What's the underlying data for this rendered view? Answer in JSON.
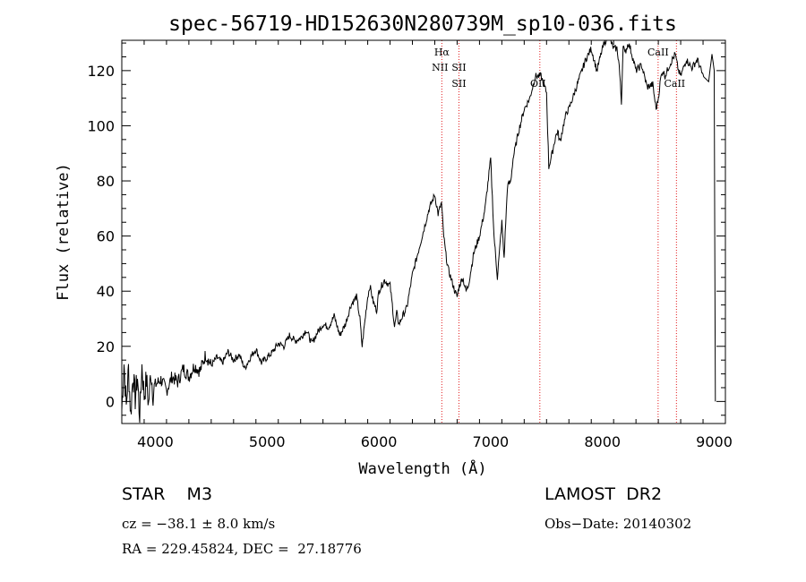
{
  "chart_data": {
    "type": "line",
    "title": "spec-56719-HD152630N280739M_sp10-036.fits",
    "xlabel": "Wavelength (Å)",
    "ylabel": "Flux (relative)",
    "xlim": [
      3700,
      9100
    ],
    "ylim": [
      -8,
      131
    ],
    "xticks": [
      4000,
      5000,
      6000,
      7000,
      8000,
      9000
    ],
    "yticks": [
      0,
      20,
      40,
      60,
      80,
      100,
      120
    ],
    "grid": false,
    "series": [
      {
        "name": "flux",
        "x": [
          3700,
          3720,
          3740,
          3760,
          3780,
          3800,
          3820,
          3840,
          3860,
          3880,
          3900,
          3920,
          3940,
          3960,
          3980,
          4000,
          4050,
          4100,
          4150,
          4200,
          4250,
          4300,
          4350,
          4400,
          4450,
          4500,
          4550,
          4600,
          4650,
          4700,
          4750,
          4800,
          4850,
          4900,
          4950,
          5000,
          5050,
          5100,
          5150,
          5200,
          5250,
          5300,
          5350,
          5400,
          5450,
          5500,
          5550,
          5600,
          5650,
          5700,
          5750,
          5800,
          5830,
          5850,
          5880,
          5900,
          5920,
          5950,
          5980,
          6000,
          6050,
          6100,
          6120,
          6140,
          6160,
          6180,
          6200,
          6250,
          6300,
          6350,
          6400,
          6450,
          6500,
          6530,
          6560,
          6580,
          6600,
          6620,
          6650,
          6680,
          6700,
          6720,
          6750,
          6780,
          6800,
          6850,
          6900,
          6950,
          7000,
          7030,
          7060,
          7080,
          7100,
          7120,
          7150,
          7180,
          7200,
          7250,
          7300,
          7350,
          7400,
          7450,
          7500,
          7520,
          7550,
          7580,
          7600,
          7620,
          7650,
          7680,
          7700,
          7750,
          7800,
          7850,
          7900,
          7950,
          8000,
          8050,
          8100,
          8130,
          8150,
          8170,
          8185,
          8200,
          8230,
          8250,
          8300,
          8350,
          8400,
          8450,
          8480,
          8500,
          8520,
          8540,
          8560,
          8600,
          8650,
          8680,
          8700,
          8750,
          8800,
          8850,
          8900,
          8950,
          8980,
          9000,
          9010
        ],
        "values": [
          -3,
          14,
          -2,
          12,
          -5,
          10,
          1,
          9,
          -6,
          13,
          2,
          8,
          -1,
          11,
          3,
          6,
          8,
          4,
          9,
          7,
          12,
          9,
          13,
          11,
          17,
          13,
          16,
          14,
          18,
          15,
          17,
          12,
          16,
          19,
          14,
          16,
          18,
          21,
          20,
          24,
          22,
          23,
          26,
          21,
          25,
          28,
          27,
          31,
          24,
          28,
          35,
          38,
          30,
          20,
          31,
          38,
          42,
          36,
          33,
          40,
          44,
          42,
          35,
          27,
          32,
          28,
          30,
          34,
          46,
          54,
          62,
          70,
          75,
          68,
          72,
          60,
          53,
          48,
          44,
          40,
          38,
          42,
          45,
          40,
          42,
          54,
          60,
          70,
          88,
          60,
          45,
          55,
          65,
          52,
          78,
          80,
          88,
          98,
          106,
          110,
          118,
          118,
          112,
          85,
          90,
          96,
          98,
          94,
          100,
          105,
          106,
          112,
          118,
          124,
          128,
          120,
          128,
          133,
          128,
          128,
          122,
          108,
          130,
          126,
          130,
          128,
          120,
          122,
          114,
          115,
          106,
          110,
          117,
          120,
          118,
          122,
          126,
          120,
          118,
          124,
          121,
          124,
          118,
          116,
          126,
          120,
          0
        ]
      }
    ],
    "line_markers": [
      {
        "wavelength": 6563,
        "label": "Hα",
        "label2": "NII"
      },
      {
        "wavelength": 6716,
        "label": "SII",
        "label2": "SII"
      },
      {
        "wavelength": 7440,
        "label": "OII"
      },
      {
        "wavelength": 8498,
        "label": "CaII"
      },
      {
        "wavelength": 8662,
        "label": "CaII"
      }
    ]
  },
  "info": {
    "star_class": "STAR    M3",
    "survey": "LAMOST  DR2",
    "cz": "cz = −38.1 ± 8.0 km/s",
    "obs_date": "Obs−Date: 20140302",
    "coords": "RA = 229.45824, DEC =  27.18776"
  },
  "colors": {
    "line": "#000000",
    "marker": "#e31a1c",
    "axis": "#000000"
  }
}
